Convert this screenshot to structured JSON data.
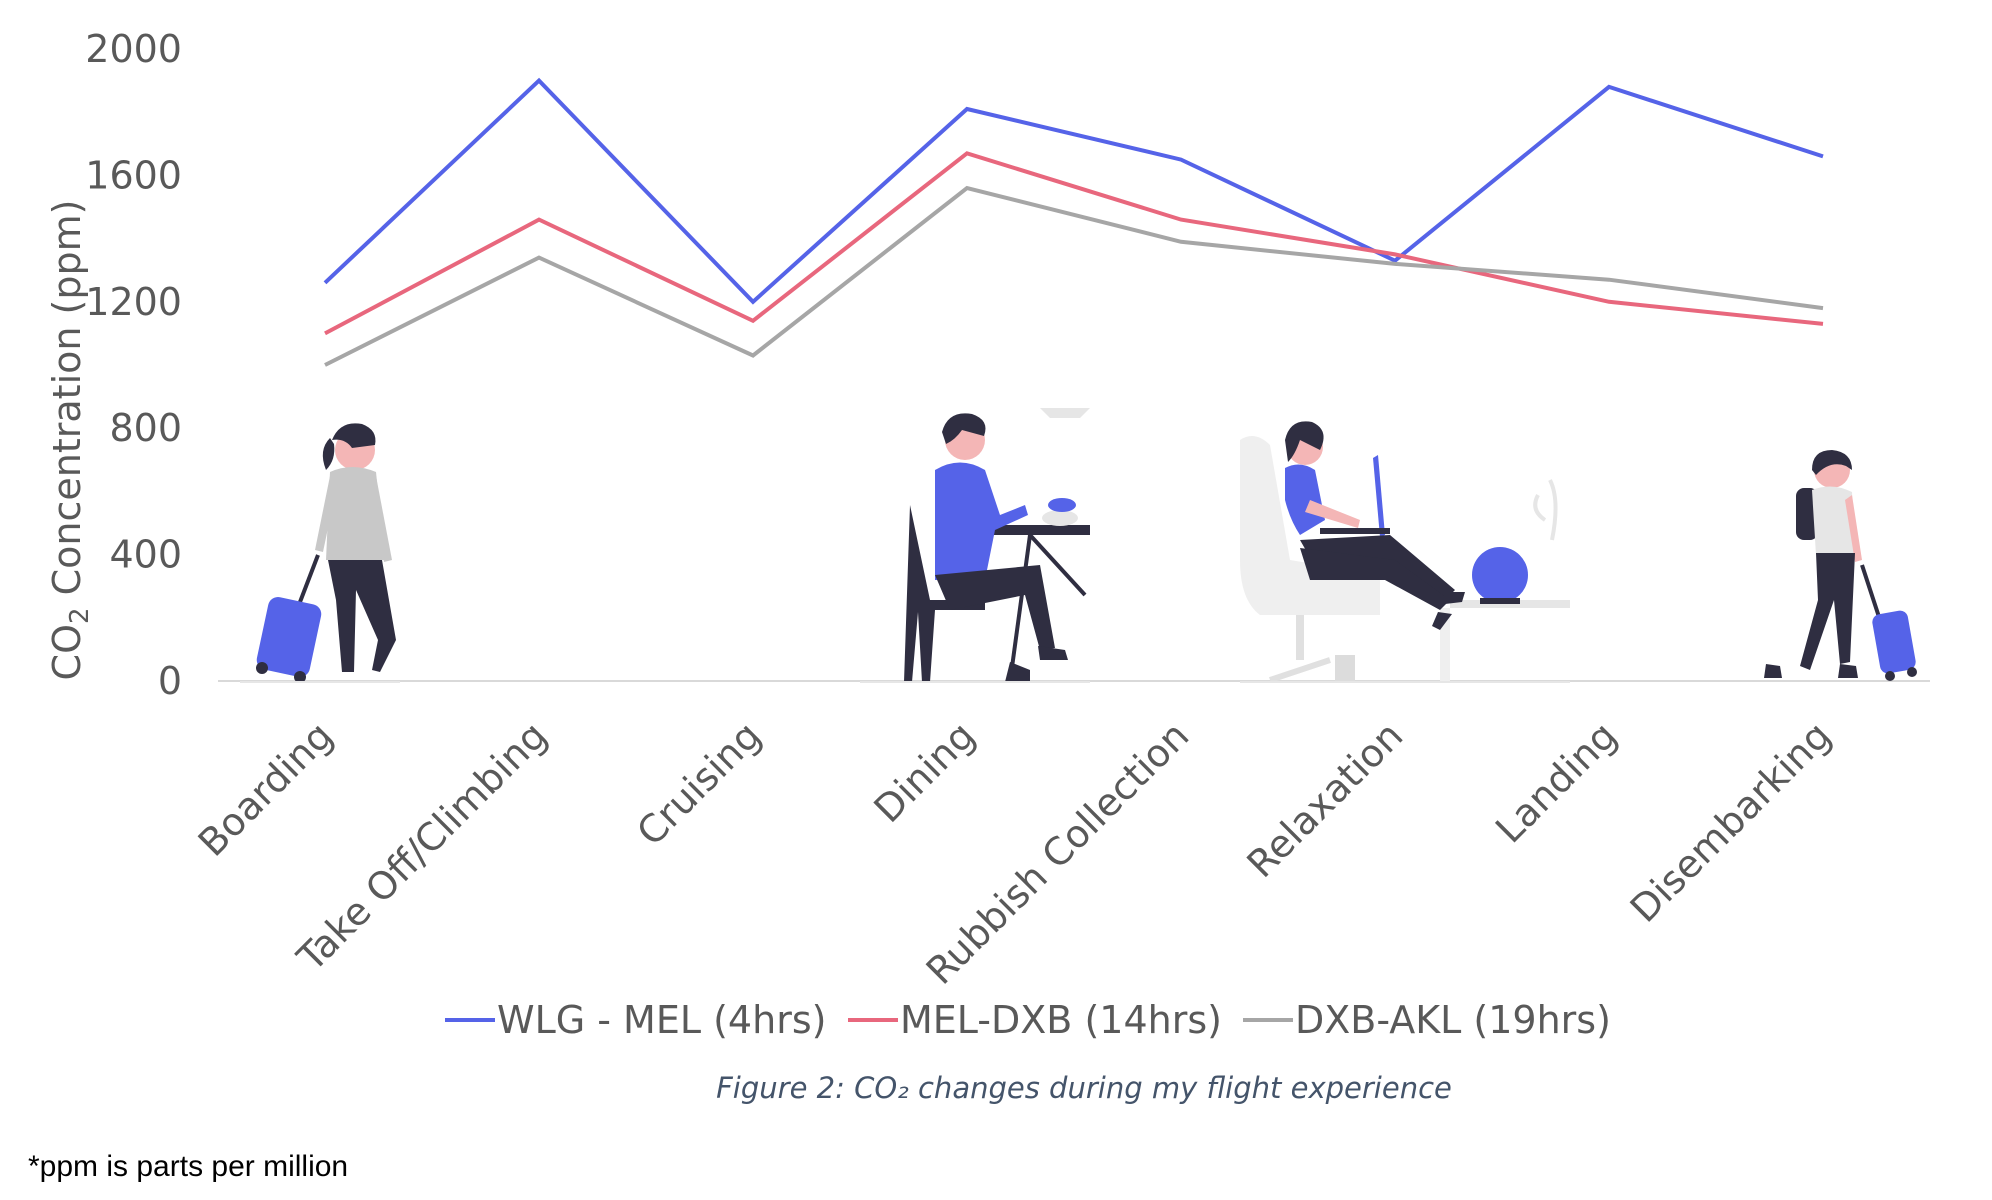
{
  "chart_data": {
    "type": "line",
    "ylabel_main": "CO",
    "ylabel_sub": "2",
    "ylabel_rest": " Concentration (ppm)",
    "ylim": [
      0,
      2000
    ],
    "yticks": [
      "0",
      "400",
      "800",
      "1200",
      "1600",
      "2000"
    ],
    "grid": false,
    "legend_position": "bottom",
    "categories": [
      "Boarding",
      "Take Off/Climbing",
      "Cruising",
      "Dining",
      "Rubbish Collection",
      "Relaxation",
      "Landing",
      "Disembarking"
    ],
    "series": [
      {
        "name": "WLG - MEL (4hrs)",
        "color": "#5563e8",
        "values": [
          1260,
          1900,
          1200,
          1810,
          1650,
          1330,
          1880,
          1660
        ]
      },
      {
        "name": "MEL-DXB (14hrs)",
        "color": "#e8677d",
        "values": [
          1100,
          1460,
          1140,
          1670,
          1460,
          1350,
          1200,
          1130
        ]
      },
      {
        "name": "DXB-AKL (19hrs)",
        "color": "#a6a6a6",
        "values": [
          1000,
          1340,
          1030,
          1560,
          1390,
          1320,
          1270,
          1180
        ]
      }
    ]
  },
  "caption": "Figure 2: CO₂ changes during my flight experience",
  "footnote": "*ppm is parts per million",
  "illustrations": [
    "traveler-with-suitcase-icon",
    "person-dining-icon",
    "person-relaxing-laptop-icon",
    "traveler-disembarking-icon"
  ]
}
